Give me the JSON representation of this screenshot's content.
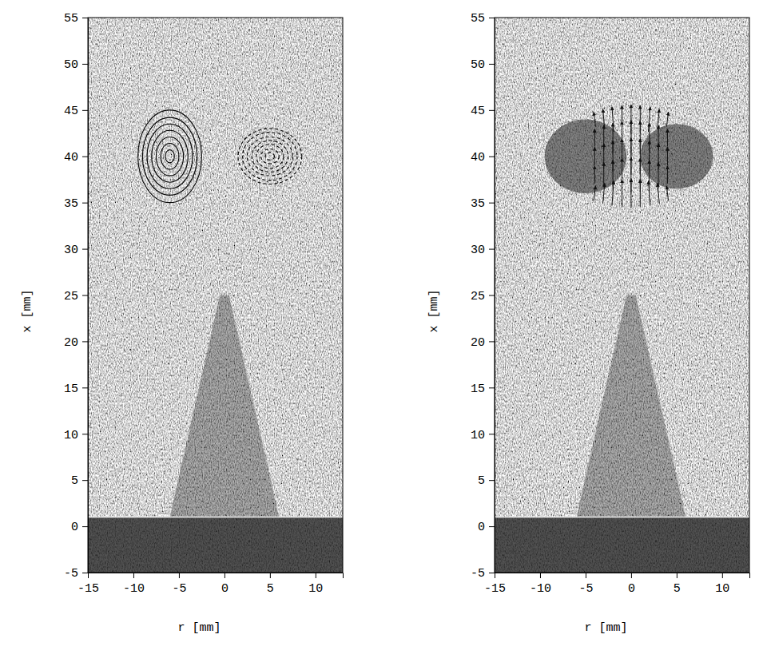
{
  "chart_data": [
    {
      "type": "contour",
      "xlabel": "r [mm]",
      "ylabel": "x [mm]",
      "xlim": [
        -15,
        13
      ],
      "ylim": [
        -5,
        55
      ],
      "xticks": [
        -15,
        -10,
        -5,
        0,
        5,
        10
      ],
      "yticks": [
        -5,
        0,
        5,
        10,
        15,
        20,
        25,
        30,
        35,
        40,
        45,
        50,
        55
      ],
      "wall": [
        -5,
        1
      ],
      "plume": {
        "r": [
          -0.5,
          0.5,
          6,
          -6
        ],
        "x": [
          25,
          25,
          1,
          1
        ]
      },
      "contours": [
        {
          "r": -6,
          "x": 40,
          "line_style": "solid",
          "radii_r": [
            0.5,
            1,
            1.5,
            2,
            2.5,
            3,
            3.5
          ],
          "radii_x": [
            0.7,
            1.4,
            2.1,
            2.8,
            3.5,
            4.2,
            5
          ]
        },
        {
          "r": 5,
          "x": 40,
          "line_style": "dashed",
          "radii_r": [
            0.5,
            1,
            1.5,
            2,
            2.5,
            3,
            3.5
          ],
          "radii_x": [
            0.4,
            0.8,
            1.3,
            1.7,
            2.1,
            2.6,
            3
          ]
        }
      ]
    },
    {
      "type": "vector",
      "xlabel": "r [mm]",
      "ylabel": "x [mm]",
      "xlim": [
        -15,
        13
      ],
      "ylim": [
        -5,
        55
      ],
      "xticks": [
        -15,
        -10,
        -5,
        0,
        5,
        10
      ],
      "yticks": [
        -5,
        0,
        5,
        10,
        15,
        20,
        25,
        30,
        35,
        40,
        45,
        50,
        55
      ],
      "wall": [
        -5,
        1
      ],
      "plume": {
        "r": [
          -0.5,
          0.5,
          6,
          -6
        ],
        "x": [
          25,
          25,
          1,
          1
        ]
      },
      "shading": [
        {
          "r": -5,
          "x": 40,
          "radius_r": 4.5,
          "radius_x": 4
        },
        {
          "r": 5,
          "x": 40,
          "radius_r": 4,
          "radius_x": 3.5
        }
      ],
      "vectors": [
        [
          -4,
          36,
          0.2,
          1.6
        ],
        [
          -3,
          36,
          0.2,
          2.2
        ],
        [
          -2,
          36,
          0.2,
          2.7
        ],
        [
          -1,
          36,
          0,
          3.0
        ],
        [
          0,
          36,
          0,
          3.2
        ],
        [
          1,
          36,
          0,
          3.0
        ],
        [
          2,
          36,
          -0.2,
          2.7
        ],
        [
          3,
          36,
          -0.2,
          2.2
        ],
        [
          4,
          36,
          -0.2,
          1.6
        ],
        [
          -4,
          38,
          0,
          1.9
        ],
        [
          -3,
          38,
          0,
          2.7
        ],
        [
          -2,
          38,
          0,
          3.2
        ],
        [
          -1,
          38,
          0,
          3.6
        ],
        [
          0,
          38,
          0,
          3.8
        ],
        [
          1,
          38,
          0,
          3.6
        ],
        [
          2,
          38,
          0,
          3.2
        ],
        [
          3,
          38,
          0,
          2.7
        ],
        [
          4,
          38,
          0,
          1.9
        ],
        [
          -4,
          40,
          0,
          2.0
        ],
        [
          -3,
          40,
          0,
          2.8
        ],
        [
          -2,
          40,
          0,
          3.4
        ],
        [
          -1,
          40,
          0,
          3.8
        ],
        [
          0,
          40,
          0,
          4.0
        ],
        [
          1,
          40,
          0,
          3.8
        ],
        [
          2,
          40,
          0,
          3.4
        ],
        [
          3,
          40,
          0,
          2.8
        ],
        [
          4,
          40,
          0,
          2.0
        ],
        [
          -4,
          42,
          0,
          1.9
        ],
        [
          -3,
          42,
          0,
          2.7
        ],
        [
          -2,
          42,
          0,
          3.2
        ],
        [
          -1,
          42,
          0,
          3.6
        ],
        [
          0,
          42,
          0,
          3.8
        ],
        [
          1,
          42,
          0,
          3.6
        ],
        [
          2,
          42,
          0,
          3.2
        ],
        [
          3,
          42,
          0,
          2.7
        ],
        [
          4,
          42,
          0,
          1.9
        ],
        [
          -4,
          44,
          -0.2,
          1.6
        ],
        [
          -3,
          44,
          -0.2,
          2.2
        ],
        [
          -2,
          44,
          -0.2,
          2.7
        ],
        [
          -1,
          44,
          0,
          3.0
        ],
        [
          0,
          44,
          0,
          3.2
        ],
        [
          1,
          44,
          0,
          3.0
        ],
        [
          2,
          44,
          0.2,
          2.7
        ],
        [
          3,
          44,
          0.2,
          2.2
        ],
        [
          4,
          44,
          0.2,
          1.6
        ]
      ]
    }
  ]
}
